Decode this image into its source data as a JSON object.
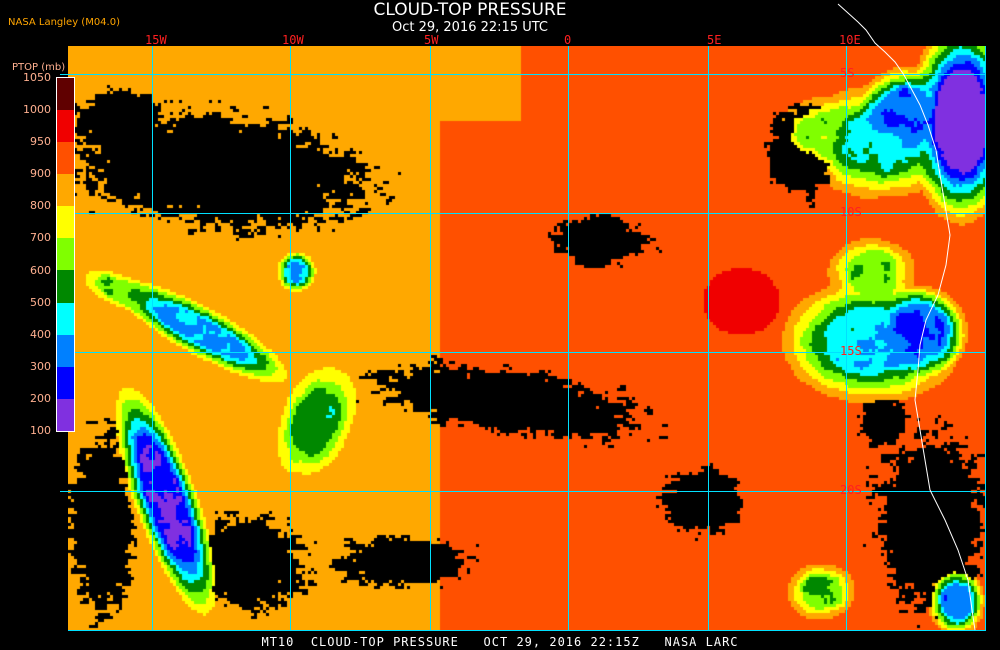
{
  "header": {
    "title": "CLOUD-TOP PRESSURE",
    "subtitle": "Oct 29, 2016 22:15 UTC",
    "credit": "NASA Langley (M04.0)"
  },
  "map": {
    "longitude_labels": [
      "15W",
      "10W",
      "5W",
      "0",
      "5E",
      "10E"
    ],
    "latitude_labels": [
      "5S",
      "10S",
      "15S",
      "20S"
    ],
    "grid_color": "#00e0ff",
    "coastline_color": "#ffffff",
    "clear_sky_color": "#000000"
  },
  "colorbar": {
    "title": "PTOP (mb)",
    "labels": [
      "1050",
      "1000",
      "950",
      "900",
      "800",
      "700",
      "600",
      "500",
      "400",
      "300",
      "200",
      "100"
    ],
    "colors": [
      "#600000",
      "#f00000",
      "#ff5000",
      "#ffa800",
      "#ffff00",
      "#80ff00",
      "#008800",
      "#00ffff",
      "#0080ff",
      "#0000ff",
      "#8030e0"
    ]
  },
  "footer": {
    "text": "MT10  CLOUD-TOP PRESSURE   OCT 29, 2016 22:15Z   NASA LARC"
  }
}
